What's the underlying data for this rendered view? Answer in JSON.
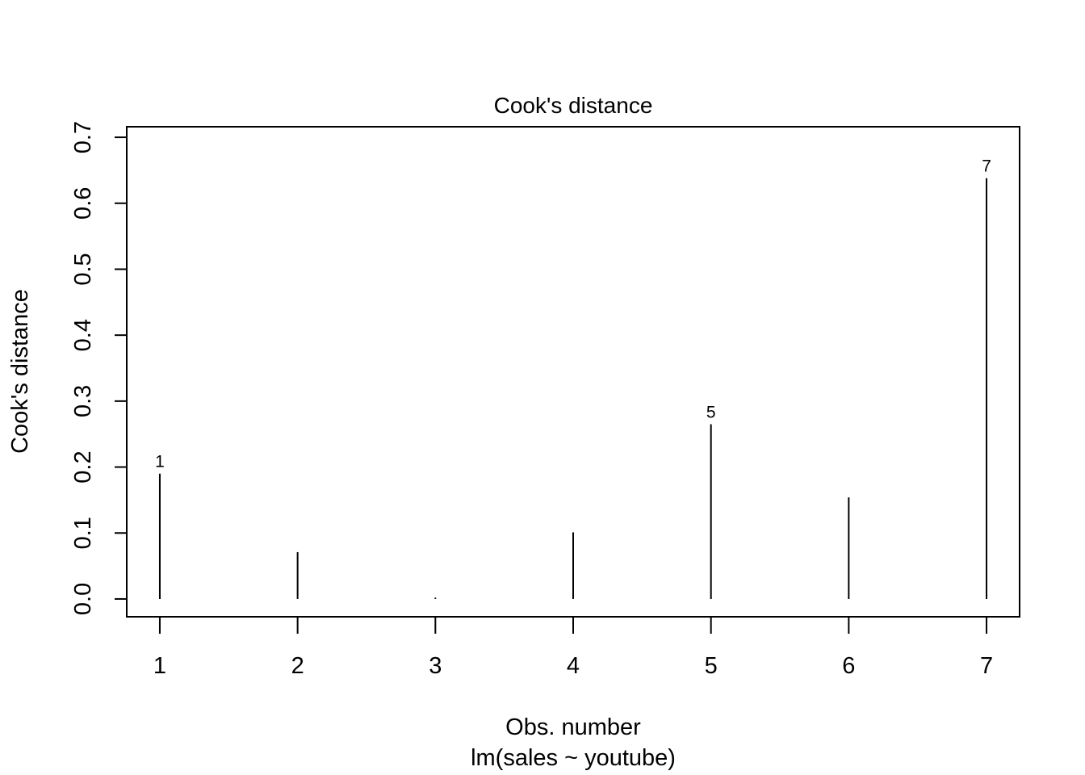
{
  "chart_data": {
    "type": "bar",
    "title": "Cook's distance",
    "xlabel": "Obs. number",
    "subtitle": "lm(sales ~ youtube)",
    "ylabel": "Cook's distance",
    "categories": [
      "1",
      "2",
      "3",
      "4",
      "5",
      "6",
      "7"
    ],
    "x": [
      1,
      2,
      3,
      4,
      5,
      6,
      7
    ],
    "values": [
      0.19,
      0.071,
      0.002,
      0.101,
      0.265,
      0.154,
      0.638
    ],
    "point_labels": [
      {
        "x": 1,
        "label": "1"
      },
      {
        "x": 5,
        "label": "5"
      },
      {
        "x": 7,
        "label": "7"
      }
    ],
    "xlim": [
      0.76,
      7.24
    ],
    "ylim": [
      -0.027,
      0.716
    ],
    "y_ticks": [
      0.0,
      0.1,
      0.2,
      0.3,
      0.4,
      0.5,
      0.6,
      0.7
    ],
    "y_tick_labels": [
      "0.0",
      "0.1",
      "0.2",
      "0.3",
      "0.4",
      "0.5",
      "0.6",
      "0.7"
    ],
    "x_ticks": [
      1,
      2,
      3,
      4,
      5,
      6,
      7
    ],
    "x_tick_labels": [
      "1",
      "2",
      "3",
      "4",
      "5",
      "6",
      "7"
    ],
    "grid": false,
    "legend": "none",
    "colors": {
      "line": "#000000",
      "background": "#ffffff"
    }
  }
}
